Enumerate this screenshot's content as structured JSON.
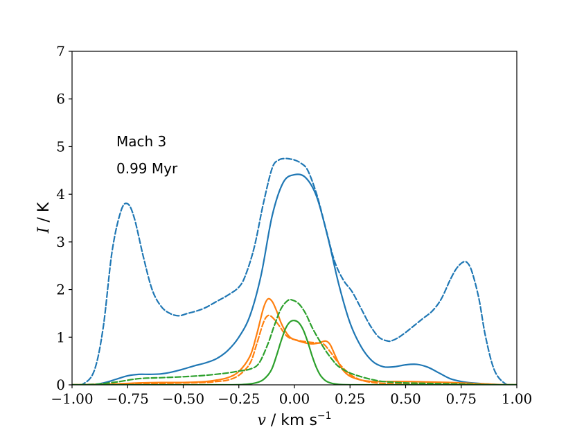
{
  "chart_data": {
    "type": "line",
    "xlabel_var": "v",
    "xlabel_unit": "km s",
    "xlabel_exp": "−1",
    "ylabel_var": "I",
    "ylabel_unit": "K",
    "xlim": [
      -1.0,
      1.0
    ],
    "ylim": [
      0,
      7
    ],
    "xticks": [
      -1.0,
      -0.75,
      -0.5,
      -0.25,
      0.0,
      0.25,
      0.5,
      0.75,
      1.0
    ],
    "xtick_labels": [
      "−1.00",
      "−0.75",
      "−0.50",
      "−0.25",
      "0.00",
      "0.25",
      "0.50",
      "0.75",
      "1.00"
    ],
    "yticks": [
      0,
      1,
      2,
      3,
      4,
      5,
      6,
      7
    ],
    "ytick_labels": [
      "0",
      "1",
      "2",
      "3",
      "4",
      "5",
      "6",
      "7"
    ],
    "annotations": [
      "Mach 3",
      "0.99 Myr"
    ],
    "grid": false,
    "series": [
      {
        "color": "#1f77b4",
        "dash": "solid",
        "x": [
          -1.0,
          -0.9,
          -0.85,
          -0.8,
          -0.75,
          -0.7,
          -0.65,
          -0.6,
          -0.55,
          -0.5,
          -0.45,
          -0.4,
          -0.35,
          -0.3,
          -0.25,
          -0.2,
          -0.15,
          -0.1,
          -0.05,
          0.0,
          0.05,
          0.1,
          0.15,
          0.2,
          0.25,
          0.3,
          0.35,
          0.4,
          0.45,
          0.5,
          0.55,
          0.6,
          0.65,
          0.7,
          0.75,
          0.8,
          0.9,
          1.0
        ],
        "y": [
          0,
          0.01,
          0.05,
          0.12,
          0.19,
          0.22,
          0.22,
          0.23,
          0.27,
          0.33,
          0.4,
          0.46,
          0.55,
          0.72,
          1.0,
          1.45,
          2.3,
          3.55,
          4.25,
          4.41,
          4.35,
          3.95,
          3.1,
          2.1,
          1.3,
          0.8,
          0.5,
          0.38,
          0.38,
          0.42,
          0.43,
          0.37,
          0.25,
          0.13,
          0.07,
          0.04,
          0.01,
          0
        ]
      },
      {
        "color": "#1f77b4",
        "dash": "dashed",
        "x": [
          -1.0,
          -0.95,
          -0.9,
          -0.86,
          -0.82,
          -0.78,
          -0.75,
          -0.72,
          -0.68,
          -0.64,
          -0.6,
          -0.56,
          -0.52,
          -0.48,
          -0.44,
          -0.4,
          -0.35,
          -0.3,
          -0.25,
          -0.22,
          -0.18,
          -0.14,
          -0.1,
          -0.07,
          -0.04,
          -0.02,
          0.0,
          0.03,
          0.06,
          0.1,
          0.14,
          0.18,
          0.22,
          0.26,
          0.3,
          0.34,
          0.38,
          0.42,
          0.44,
          0.47,
          0.5,
          0.54,
          0.58,
          0.62,
          0.66,
          0.7,
          0.73,
          0.76,
          0.78,
          0.8,
          0.83,
          0.86,
          0.9,
          0.95,
          1.0
        ],
        "y": [
          0,
          0.02,
          0.3,
          1.2,
          2.8,
          3.65,
          3.8,
          3.5,
          2.7,
          2.0,
          1.65,
          1.5,
          1.45,
          1.5,
          1.55,
          1.62,
          1.75,
          1.88,
          2.05,
          2.3,
          2.9,
          3.8,
          4.55,
          4.72,
          4.75,
          4.74,
          4.72,
          4.65,
          4.5,
          4.0,
          3.3,
          2.6,
          2.2,
          1.95,
          1.6,
          1.25,
          1.0,
          0.92,
          0.93,
          1.0,
          1.1,
          1.25,
          1.4,
          1.55,
          1.8,
          2.2,
          2.45,
          2.58,
          2.55,
          2.35,
          1.8,
          1.0,
          0.3,
          0.02,
          0
        ]
      },
      {
        "color": "#ff7f0e",
        "dash": "solid",
        "x": [
          -1.0,
          -0.9,
          -0.8,
          -0.7,
          -0.6,
          -0.5,
          -0.4,
          -0.35,
          -0.3,
          -0.25,
          -0.2,
          -0.17,
          -0.14,
          -0.12,
          -0.1,
          -0.08,
          -0.06,
          -0.04,
          -0.02,
          0.0,
          0.02,
          0.05,
          0.08,
          0.11,
          0.14,
          0.16,
          0.18,
          0.2,
          0.22,
          0.25,
          0.3,
          0.35,
          0.4,
          0.5,
          0.6,
          0.7,
          0.8,
          0.9,
          1.0
        ],
        "y": [
          0,
          0.01,
          0.02,
          0.04,
          0.05,
          0.05,
          0.07,
          0.1,
          0.15,
          0.28,
          0.6,
          1.05,
          1.6,
          1.8,
          1.75,
          1.55,
          1.3,
          1.12,
          1.0,
          0.95,
          0.92,
          0.88,
          0.86,
          0.88,
          0.92,
          0.85,
          0.65,
          0.45,
          0.3,
          0.18,
          0.1,
          0.07,
          0.07,
          0.07,
          0.06,
          0.05,
          0.03,
          0.01,
          0
        ]
      },
      {
        "color": "#ff7f0e",
        "dash": "dashed",
        "x": [
          -1.0,
          -0.9,
          -0.8,
          -0.7,
          -0.6,
          -0.5,
          -0.4,
          -0.35,
          -0.3,
          -0.25,
          -0.2,
          -0.17,
          -0.14,
          -0.12,
          -0.1,
          -0.07,
          -0.04,
          -0.02,
          0.0,
          0.03,
          0.06,
          0.1,
          0.13,
          0.16,
          0.2,
          0.25,
          0.3,
          0.35,
          0.4,
          0.5,
          0.6,
          0.7,
          0.8,
          0.9,
          1.0
        ],
        "y": [
          0,
          0.01,
          0.02,
          0.03,
          0.03,
          0.04,
          0.05,
          0.07,
          0.1,
          0.2,
          0.45,
          0.85,
          1.3,
          1.45,
          1.42,
          1.25,
          1.05,
          0.98,
          0.95,
          0.92,
          0.9,
          0.88,
          0.86,
          0.7,
          0.45,
          0.22,
          0.1,
          0.05,
          0.03,
          0.02,
          0.02,
          0.01,
          0.01,
          0,
          0
        ]
      },
      {
        "color": "#2ca02c",
        "dash": "solid",
        "x": [
          -1.0,
          -0.6,
          -0.3,
          -0.2,
          -0.15,
          -0.12,
          -0.1,
          -0.08,
          -0.06,
          -0.04,
          -0.02,
          0.0,
          0.02,
          0.04,
          0.06,
          0.08,
          0.1,
          0.12,
          0.15,
          0.2,
          0.3,
          0.6,
          1.0
        ],
        "y": [
          0,
          0,
          0.0,
          0.02,
          0.08,
          0.2,
          0.35,
          0.62,
          0.92,
          1.18,
          1.32,
          1.35,
          1.3,
          1.15,
          0.9,
          0.6,
          0.35,
          0.18,
          0.06,
          0.01,
          0,
          0,
          0
        ]
      },
      {
        "color": "#2ca02c",
        "dash": "dashed",
        "x": [
          -1.0,
          -0.9,
          -0.8,
          -0.7,
          -0.6,
          -0.5,
          -0.4,
          -0.3,
          -0.25,
          -0.2,
          -0.16,
          -0.12,
          -0.09,
          -0.06,
          -0.03,
          -0.01,
          0.02,
          0.05,
          0.08,
          0.11,
          0.14,
          0.17,
          0.2,
          0.25,
          0.3,
          0.35,
          0.4,
          0.5,
          0.6,
          0.7,
          0.8,
          0.9,
          1.0
        ],
        "y": [
          0,
          0.01,
          0.06,
          0.13,
          0.15,
          0.17,
          0.2,
          0.25,
          0.29,
          0.33,
          0.45,
          0.85,
          1.25,
          1.6,
          1.77,
          1.78,
          1.7,
          1.5,
          1.2,
          0.95,
          0.72,
          0.53,
          0.38,
          0.25,
          0.17,
          0.11,
          0.07,
          0.04,
          0.03,
          0.02,
          0.01,
          0,
          0
        ]
      }
    ]
  }
}
